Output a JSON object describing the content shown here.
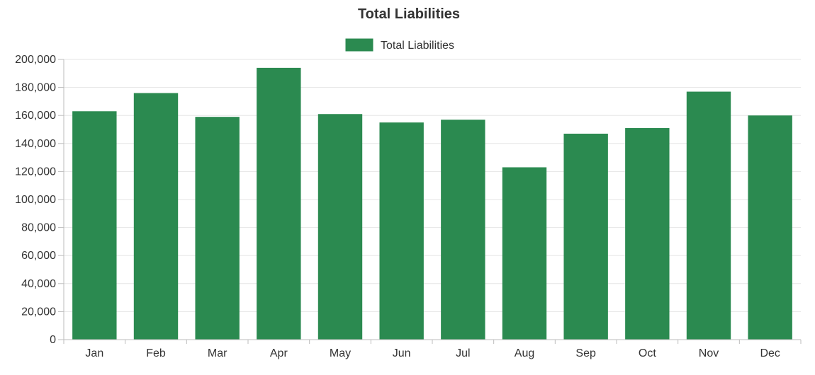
{
  "chart_data": {
    "type": "bar",
    "title": "Total Liabilities",
    "categories": [
      "Jan",
      "Feb",
      "Mar",
      "Apr",
      "May",
      "Jun",
      "Jul",
      "Aug",
      "Sep",
      "Oct",
      "Nov",
      "Dec"
    ],
    "series": [
      {
        "name": "Total Liabilities",
        "color": "#2b8a50",
        "values": [
          163000,
          176000,
          159000,
          194000,
          161000,
          155000,
          157000,
          123000,
          147000,
          151000,
          177000,
          160000
        ]
      }
    ],
    "ylim": [
      0,
      200000
    ],
    "yticks": [
      0,
      20000,
      40000,
      60000,
      80000,
      100000,
      120000,
      140000,
      160000,
      180000,
      200000
    ],
    "ytick_labels": [
      "0",
      "20,000",
      "40,000",
      "60,000",
      "80,000",
      "100,000",
      "120,000",
      "140,000",
      "160,000",
      "180,000",
      "200,000"
    ],
    "grid": true,
    "legend": "top-center",
    "xlabel": "",
    "ylabel": ""
  }
}
